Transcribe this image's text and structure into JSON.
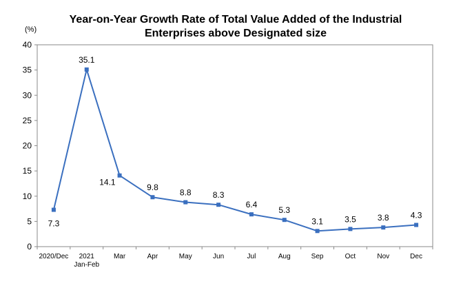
{
  "chart_data": {
    "type": "line",
    "title_lines": [
      "Year-on-Year Growth Rate of Total Value Added of the Industrial",
      "Enterprises above Designated size"
    ],
    "ylabel": "(%)",
    "xlabel": "",
    "ylim": [
      0,
      40
    ],
    "yticks": [
      0,
      5,
      10,
      15,
      20,
      25,
      30,
      35,
      40
    ],
    "grid": false,
    "legend": "none",
    "categories": [
      [
        "2020/Dec"
      ],
      [
        "2021",
        "Jan-Feb"
      ],
      [
        "Mar"
      ],
      [
        "Apr"
      ],
      [
        "May"
      ],
      [
        "Jun"
      ],
      [
        "Jul"
      ],
      [
        "Aug"
      ],
      [
        "Sep"
      ],
      [
        "Oct"
      ],
      [
        "Nov"
      ],
      [
        "Dec"
      ]
    ],
    "series": [
      {
        "values": [
          7.3,
          35.1,
          14.1,
          9.8,
          8.8,
          8.3,
          6.4,
          5.3,
          3.1,
          3.5,
          3.8,
          4.3
        ],
        "color": "#3a6fbf"
      }
    ],
    "data_labels": [
      "7.3",
      "35.1",
      "14.1",
      "9.8",
      "8.8",
      "8.3",
      "6.4",
      "5.3",
      "3.1",
      "3.5",
      "3.8",
      "4.3"
    ]
  }
}
